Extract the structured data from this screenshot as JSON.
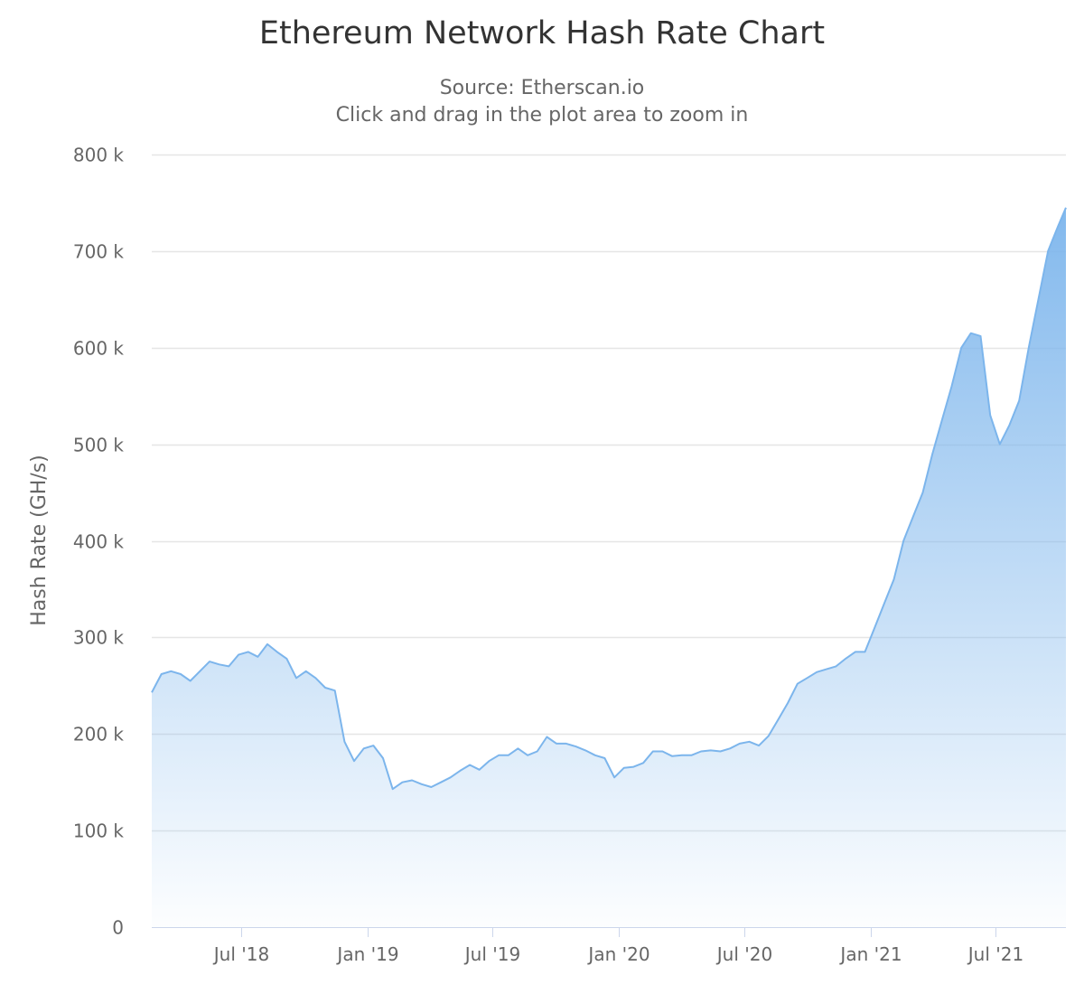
{
  "chart_data": {
    "type": "area",
    "title": "Ethereum Network Hash Rate Chart",
    "subtitle": "Source: Etherscan.io",
    "subtitle2": "Click and drag in the plot area to zoom in",
    "xlabel": "",
    "ylabel": "Hash Rate (GH/s)",
    "ylim": [
      0,
      800000
    ],
    "xlim": [
      "2018-02-21",
      "2021-10-11"
    ],
    "grid": true,
    "legend": "none",
    "y_ticks": [
      {
        "value": 0,
        "label": "0"
      },
      {
        "value": 100000,
        "label": "100 k"
      },
      {
        "value": 200000,
        "label": "200 k"
      },
      {
        "value": 300000,
        "label": "300 k"
      },
      {
        "value": 400000,
        "label": "400 k"
      },
      {
        "value": 500000,
        "label": "500 k"
      },
      {
        "value": 600000,
        "label": "600 k"
      },
      {
        "value": 700000,
        "label": "700 k"
      },
      {
        "value": 800000,
        "label": "800 k"
      }
    ],
    "x_ticks": [
      {
        "date": "2018-07-01",
        "label": "Jul '18"
      },
      {
        "date": "2019-01-01",
        "label": "Jan '19"
      },
      {
        "date": "2019-07-01",
        "label": "Jul '19"
      },
      {
        "date": "2020-01-01",
        "label": "Jan '20"
      },
      {
        "date": "2020-07-01",
        "label": "Jul '20"
      },
      {
        "date": "2021-01-01",
        "label": "Jan '21"
      },
      {
        "date": "2021-07-01",
        "label": "Jul '21"
      }
    ],
    "series": [
      {
        "name": "Hash Rate",
        "color": "#7cb5ec",
        "start": "2018-02-21",
        "interval_days": 14,
        "values": [
          243000,
          262000,
          265000,
          262000,
          255000,
          265000,
          275000,
          272000,
          270000,
          282000,
          285000,
          280000,
          293000,
          285000,
          278000,
          258000,
          265000,
          258000,
          248000,
          245000,
          192000,
          172000,
          185000,
          188000,
          175000,
          143000,
          150000,
          152000,
          148000,
          145000,
          150000,
          155000,
          162000,
          168000,
          163000,
          172000,
          178000,
          178000,
          185000,
          178000,
          182000,
          197000,
          190000,
          190000,
          187000,
          183000,
          178000,
          175000,
          155000,
          165000,
          166000,
          170000,
          182000,
          182000,
          177000,
          178000,
          178000,
          182000,
          183000,
          182000,
          185000,
          190000,
          192000,
          188000,
          198000,
          215000,
          232000,
          252000,
          258000,
          264000,
          267000,
          270000,
          278000,
          285000,
          285000,
          310000,
          335000,
          360000,
          400000,
          425000,
          450000,
          490000,
          525000,
          560000,
          600000,
          615000,
          612000,
          530000,
          500000,
          520000,
          545000,
          600000,
          650000,
          700000,
          725000,
          745000
        ]
      }
    ]
  }
}
